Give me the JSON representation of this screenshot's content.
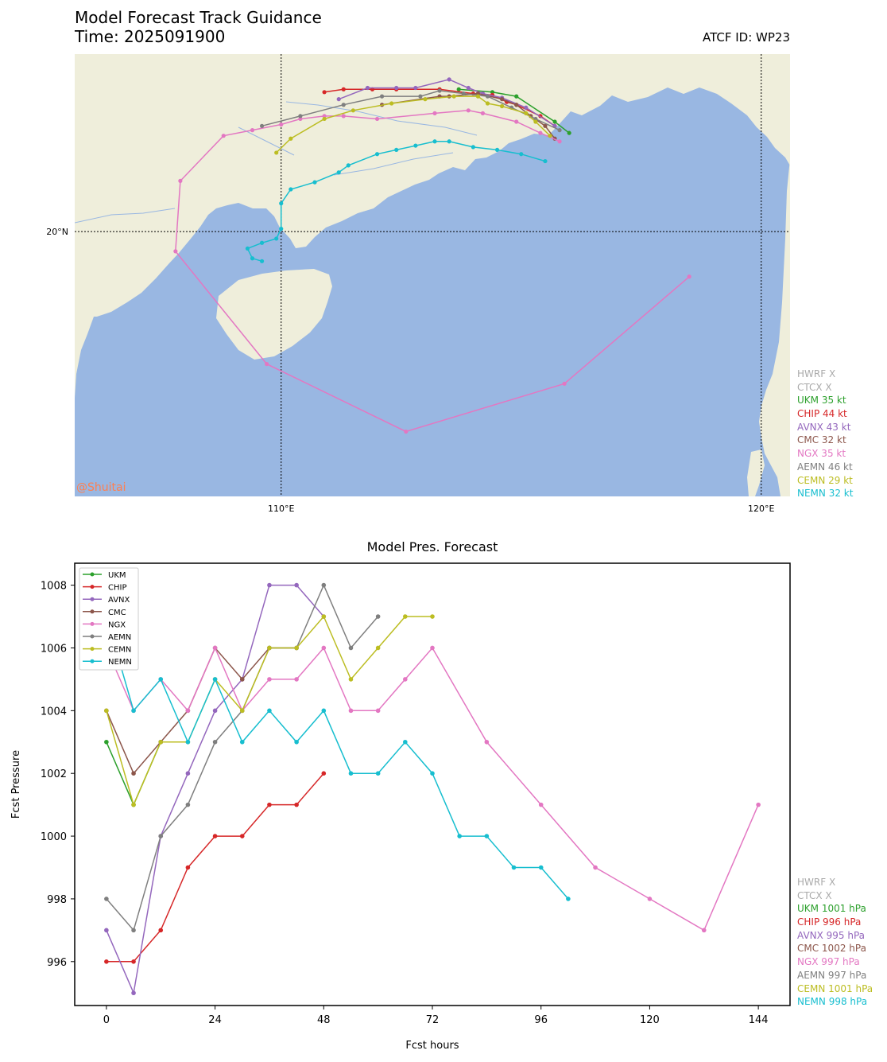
{
  "header": {
    "title": "Model Forecast Track Guidance",
    "time": "Time: 2025091900",
    "atcf": "ATCF ID: WP23"
  },
  "colors": {
    "UKM": "#2ca02c",
    "CHIP": "#d62728",
    "AVNX": "#9467bd",
    "CMC": "#8c564b",
    "NGX": "#e377c2",
    "AEMN": "#7f7f7f",
    "CEMN": "#bcbd22",
    "NEMN": "#17becf",
    "inactive": "#aaaaaa",
    "ocean": "#99b7e2",
    "land": "#efeedb",
    "watermark": "#ff7f50"
  },
  "map": {
    "lon_range": [
      105.7,
      120.6
    ],
    "lat_range": [
      10.6,
      26.3
    ],
    "x_ticks": [
      "110°E",
      "120°E"
    ],
    "x_tick_values": [
      110,
      120
    ],
    "y_ticks": [
      "20°N"
    ],
    "y_tick_values": [
      20
    ],
    "watermark": "@Shuitai",
    "legend": [
      {
        "key": "HWRF",
        "text": "HWRF X"
      },
      {
        "key": "CTCX",
        "text": "CTCX X"
      },
      {
        "key": "UKM",
        "text": "UKM 35 kt"
      },
      {
        "key": "CHIP",
        "text": "CHIP 44 kt"
      },
      {
        "key": "AVNX",
        "text": "AVNX 43 kt"
      },
      {
        "key": "CMC",
        "text": "CMC 32 kt"
      },
      {
        "key": "NGX",
        "text": "NGX 35 kt"
      },
      {
        "key": "AEMN",
        "text": "AEMN 46 kt"
      },
      {
        "key": "CEMN",
        "text": "CEMN 29 kt"
      },
      {
        "key": "NEMN",
        "text": "NEMN 32 kt"
      }
    ],
    "tracks": [
      {
        "model": "UKM",
        "points": [
          [
            116.0,
            23.5
          ],
          [
            115.7,
            23.9
          ],
          [
            114.9,
            24.8
          ],
          [
            114.4,
            24.95
          ],
          [
            113.7,
            25.05
          ]
        ]
      },
      {
        "model": "CHIP",
        "points": [
          [
            115.7,
            23.75
          ],
          [
            115.4,
            24.1
          ],
          [
            114.9,
            24.5
          ],
          [
            114.7,
            24.6
          ],
          [
            114.4,
            24.85
          ],
          [
            114.0,
            24.9
          ],
          [
            113.3,
            25.05
          ],
          [
            112.4,
            25.05
          ],
          [
            111.9,
            25.05
          ],
          [
            111.3,
            25.05
          ],
          [
            110.9,
            24.95
          ]
        ]
      },
      {
        "model": "AVNX",
        "points": [
          [
            115.7,
            23.75
          ],
          [
            115.1,
            24.4
          ],
          [
            114.6,
            24.75
          ],
          [
            114.2,
            24.9
          ],
          [
            113.9,
            25.1
          ],
          [
            113.5,
            25.4
          ],
          [
            112.8,
            25.1
          ],
          [
            112.4,
            25.1
          ],
          [
            111.8,
            25.1
          ],
          [
            111.2,
            24.7
          ]
        ]
      },
      {
        "model": "CMC",
        "points": [
          [
            115.7,
            23.3
          ],
          [
            115.5,
            23.75
          ],
          [
            115.2,
            24.1
          ],
          [
            114.9,
            24.5
          ],
          [
            114.6,
            24.7
          ],
          [
            114.1,
            24.9
          ],
          [
            113.5,
            24.8
          ],
          [
            113.3,
            24.8
          ],
          [
            112.1,
            24.5
          ]
        ]
      },
      {
        "model": "NGX",
        "points": [
          [
            115.8,
            23.2
          ],
          [
            115.4,
            23.5
          ],
          [
            114.9,
            23.9
          ],
          [
            114.2,
            24.2
          ],
          [
            113.9,
            24.3
          ],
          [
            113.2,
            24.2
          ],
          [
            112.0,
            24.0
          ],
          [
            111.3,
            24.1
          ],
          [
            110.9,
            24.1
          ],
          [
            110.4,
            24.0
          ],
          [
            110.0,
            23.8
          ],
          [
            109.4,
            23.6
          ],
          [
            108.8,
            23.4
          ],
          [
            107.9,
            21.8
          ],
          [
            107.8,
            19.3
          ],
          [
            109.7,
            15.3
          ],
          [
            112.6,
            12.9
          ],
          [
            115.9,
            14.6
          ],
          [
            118.5,
            18.4
          ]
        ]
      },
      {
        "model": "AEMN",
        "points": [
          [
            115.8,
            23.6
          ],
          [
            115.3,
            24.0
          ],
          [
            114.8,
            24.4
          ],
          [
            114.3,
            24.8
          ],
          [
            113.8,
            24.9
          ],
          [
            113.3,
            25.0
          ],
          [
            112.9,
            24.8
          ],
          [
            112.1,
            24.8
          ],
          [
            111.3,
            24.5
          ],
          [
            110.4,
            24.1
          ],
          [
            109.6,
            23.75
          ]
        ]
      },
      {
        "model": "CEMN",
        "points": [
          [
            115.6,
            23.4
          ],
          [
            115.3,
            23.9
          ],
          [
            115.1,
            24.2
          ],
          [
            114.6,
            24.45
          ],
          [
            114.3,
            24.55
          ],
          [
            114.1,
            24.8
          ],
          [
            113.6,
            24.8
          ],
          [
            113.0,
            24.7
          ],
          [
            112.3,
            24.55
          ],
          [
            111.5,
            24.3
          ],
          [
            110.9,
            24.0
          ],
          [
            110.2,
            23.3
          ],
          [
            109.9,
            22.8
          ]
        ]
      },
      {
        "model": "NEMN",
        "points": [
          [
            115.5,
            22.5
          ],
          [
            115.0,
            22.75
          ],
          [
            114.5,
            22.9
          ],
          [
            114.0,
            23.0
          ],
          [
            113.5,
            23.2
          ],
          [
            113.2,
            23.2
          ],
          [
            112.8,
            23.05
          ],
          [
            112.4,
            22.9
          ],
          [
            112.0,
            22.75
          ],
          [
            111.4,
            22.35
          ],
          [
            111.2,
            22.1
          ],
          [
            110.7,
            21.75
          ],
          [
            110.2,
            21.5
          ],
          [
            110.0,
            21.0
          ],
          [
            110.0,
            20.1
          ],
          [
            109.9,
            19.75
          ],
          [
            109.6,
            19.6
          ],
          [
            109.3,
            19.4
          ],
          [
            109.4,
            19.05
          ],
          [
            109.6,
            18.95
          ]
        ]
      }
    ]
  },
  "pressure": {
    "title": "Model Pres. Forecast",
    "xlabel": "Fcst hours",
    "ylabel": "Fcst Pressure",
    "x_ticks": [
      0,
      24,
      48,
      72,
      96,
      120,
      144
    ],
    "y_ticks": [
      996,
      998,
      1000,
      1002,
      1004,
      1006,
      1008
    ],
    "xlim": [
      -7,
      151
    ],
    "ylim": [
      994.6,
      1008.7
    ],
    "box_legend": [
      "UKM",
      "CHIP",
      "AVNX",
      "CMC",
      "NGX",
      "AEMN",
      "CEMN",
      "NEMN"
    ],
    "legend": [
      {
        "key": "HWRF",
        "text": "HWRF X"
      },
      {
        "key": "CTCX",
        "text": "CTCX X"
      },
      {
        "key": "UKM",
        "text": "UKM 1001 hPa"
      },
      {
        "key": "CHIP",
        "text": "CHIP 996 hPa"
      },
      {
        "key": "AVNX",
        "text": "AVNX 995 hPa"
      },
      {
        "key": "CMC",
        "text": "CMC 1002 hPa"
      },
      {
        "key": "NGX",
        "text": "NGX 997 hPa"
      },
      {
        "key": "AEMN",
        "text": "AEMN 997 hPa"
      },
      {
        "key": "CEMN",
        "text": "CEMN 1001 hPa"
      },
      {
        "key": "NEMN",
        "text": "NEMN 998 hPa"
      }
    ]
  },
  "chart_data": [
    {
      "type": "line",
      "title": "Model Pres. Forecast",
      "xlabel": "Fcst hours",
      "ylabel": "Fcst Pressure",
      "xlim": [
        -7,
        151
      ],
      "ylim": [
        994.6,
        1008.7
      ],
      "series": [
        {
          "name": "UKM",
          "x": [
            0,
            6,
            12
          ],
          "values": [
            1003,
            1001,
            1003
          ]
        },
        {
          "name": "CHIP",
          "x": [
            0,
            6,
            12,
            18,
            24,
            30,
            36,
            42,
            48
          ],
          "values": [
            996,
            996,
            997,
            999,
            1000,
            1000,
            1001,
            1001,
            1002
          ]
        },
        {
          "name": "AVNX",
          "x": [
            0,
            6,
            12,
            18,
            24,
            30,
            36,
            42,
            48
          ],
          "values": [
            997,
            995,
            1000,
            1002,
            1004,
            1005,
            1008,
            1008,
            1007
          ]
        },
        {
          "name": "CMC",
          "x": [
            0,
            6,
            12,
            18,
            24,
            30,
            36,
            42
          ],
          "values": [
            1004,
            1002,
            1003,
            1004,
            1006,
            1005,
            1006,
            1006
          ]
        },
        {
          "name": "NGX",
          "x": [
            0,
            6,
            12,
            18,
            24,
            30,
            36,
            42,
            48,
            54,
            60,
            66,
            72,
            84,
            96,
            108,
            120,
            132,
            144
          ],
          "values": [
            1006,
            1004,
            1005,
            1004,
            1006,
            1004,
            1005,
            1005,
            1006,
            1004,
            1004,
            1005,
            1006,
            1003,
            1001,
            999,
            998,
            997,
            1001
          ]
        },
        {
          "name": "AEMN",
          "x": [
            0,
            6,
            12,
            18,
            24,
            30,
            36,
            42,
            48,
            54,
            60
          ],
          "values": [
            998,
            997,
            1000,
            1001,
            1003,
            1004,
            1006,
            1006,
            1008,
            1006,
            1007
          ]
        },
        {
          "name": "CEMN",
          "x": [
            0,
            6,
            12,
            18,
            24,
            30,
            36,
            42,
            48,
            54,
            60,
            66,
            72
          ],
          "values": [
            1004,
            1001,
            1003,
            1003,
            1005,
            1004,
            1006,
            1006,
            1007,
            1005,
            1006,
            1007,
            1007
          ]
        },
        {
          "name": "NEMN",
          "x": [
            0,
            6,
            12,
            18,
            24,
            30,
            36,
            42,
            48,
            54,
            60,
            66,
            72,
            78,
            84,
            90,
            96,
            102
          ],
          "values": [
            1007,
            1004,
            1005,
            1003,
            1005,
            1003,
            1004,
            1003,
            1004,
            1002,
            1002,
            1003,
            1002,
            1000,
            1000,
            999,
            999,
            998
          ]
        }
      ]
    }
  ]
}
